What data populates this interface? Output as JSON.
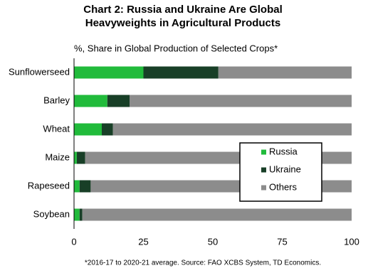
{
  "chart_data": {
    "type": "stacked-bar-horizontal",
    "title": [
      "Chart 2: Russia and Ukraine Are Global",
      "Heavyweights in Agricultural Products"
    ],
    "subtitle": "%, Share in Global Production of Selected Crops*",
    "footnote": "*2016-17 to 2020-21 average. Source: FAO XCBS System, TD Economics.",
    "categories": [
      "Sunflowerseed",
      "Barley",
      "Wheat",
      "Maize",
      "Rapeseed",
      "Soybean"
    ],
    "series": [
      {
        "name": "Russia",
        "color": "#21bb3b",
        "values": [
          25,
          12,
          10,
          1,
          2,
          2
        ]
      },
      {
        "name": "Ukraine",
        "color": "#183f27",
        "values": [
          27,
          8,
          4,
          3,
          4,
          1
        ]
      },
      {
        "name": "Others",
        "color": "#8c8c8c",
        "values": [
          48,
          80,
          86,
          96,
          94,
          97
        ]
      }
    ],
    "xlim": [
      0,
      100
    ],
    "xticks": [
      0,
      25,
      50,
      75,
      100
    ],
    "grid": false,
    "legend": "right"
  }
}
